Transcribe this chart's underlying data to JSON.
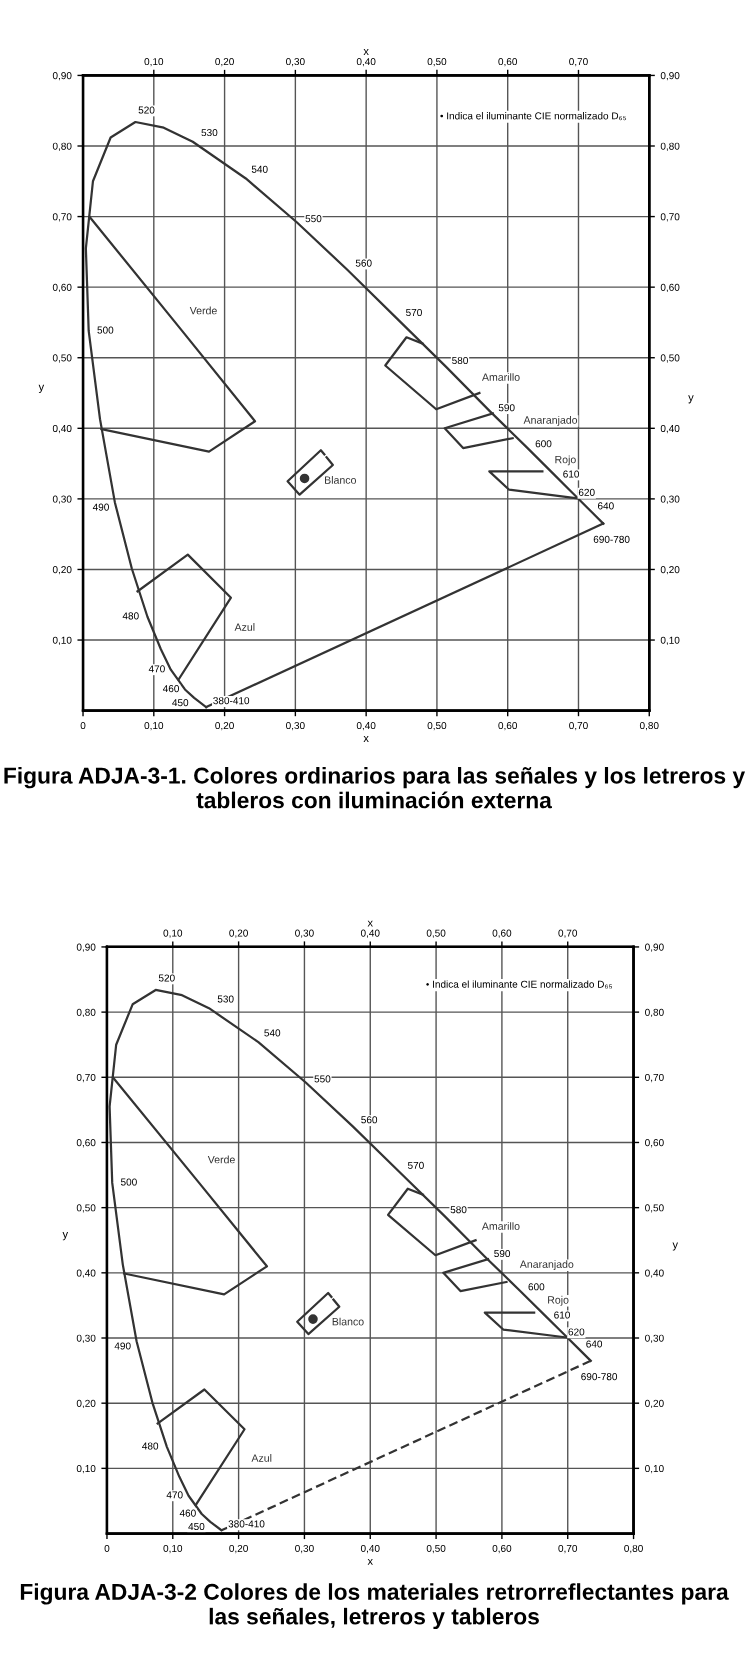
{
  "chart_data": [
    {
      "type": "line",
      "title": "Figura ADJA-3-1. Colores ordinarios para las señales y los letreros y tableros con iluminación externa",
      "xlabel": "x",
      "x2label": "x",
      "ylabel": "y",
      "y2label": "y",
      "xlim": [
        0,
        0.8
      ],
      "ylim": [
        0,
        0.9
      ],
      "x2lim": [
        0,
        0.8
      ],
      "y2lim": [
        0,
        0.9
      ],
      "xticks": [
        {
          "value": 0,
          "label": "0"
        },
        {
          "value": 0.1,
          "label": "0,10"
        },
        {
          "value": 0.2,
          "label": "0,20"
        },
        {
          "value": 0.3,
          "label": "0,30"
        },
        {
          "value": 0.4,
          "label": "0,40"
        },
        {
          "value": 0.5,
          "label": "0,50"
        },
        {
          "value": 0.6,
          "label": "0,60"
        },
        {
          "value": 0.7,
          "label": "0,70"
        },
        {
          "value": 0.8,
          "label": "0,80"
        }
      ],
      "x2ticks": [
        {
          "value": 0.1,
          "label": "0,10"
        },
        {
          "value": 0.2,
          "label": "0,20"
        },
        {
          "value": 0.3,
          "label": "0,30"
        },
        {
          "value": 0.4,
          "label": "0,40"
        },
        {
          "value": 0.5,
          "label": "0,50"
        },
        {
          "value": 0.6,
          "label": "0,60"
        },
        {
          "value": 0.7,
          "label": "0,70"
        }
      ],
      "yticks": [
        {
          "value": 0.1,
          "label": "0,10"
        },
        {
          "value": 0.2,
          "label": "0,20"
        },
        {
          "value": 0.3,
          "label": "0,30"
        },
        {
          "value": 0.4,
          "label": "0,40"
        },
        {
          "value": 0.5,
          "label": "0,50"
        },
        {
          "value": 0.6,
          "label": "0,60"
        },
        {
          "value": 0.7,
          "label": "0,70"
        },
        {
          "value": 0.8,
          "label": "0,80"
        },
        {
          "value": 0.9,
          "label": "0,90"
        }
      ],
      "y2ticks": [
        {
          "value": 0.1,
          "label": "0,10"
        },
        {
          "value": 0.2,
          "label": "0,20"
        },
        {
          "value": 0.3,
          "label": "0,30"
        },
        {
          "value": 0.4,
          "label": "0,40"
        },
        {
          "value": 0.5,
          "label": "0,50"
        },
        {
          "value": 0.6,
          "label": "0,60"
        },
        {
          "value": 0.7,
          "label": "0,70"
        },
        {
          "value": 0.8,
          "label": "0,80"
        },
        {
          "value": 0.9,
          "label": "0,90"
        }
      ],
      "grid": true,
      "legend": false,
      "series": [
        {
          "color": "#333333",
          "line_style": "solid",
          "x": [
            0.174,
            0.157,
            0.144,
            0.124,
            0.11,
            0.091,
            0.069,
            0.045,
            0.024,
            0.008,
            0.004,
            0.014,
            0.039,
            0.074,
            0.114,
            0.155,
            0.23,
            0.302,
            0.373,
            0.444,
            0.513,
            0.575,
            0.627,
            0.666,
            0.692,
            0.719,
            0.735
          ],
          "values": [
            0.005,
            0.018,
            0.03,
            0.058,
            0.087,
            0.133,
            0.201,
            0.295,
            0.413,
            0.538,
            0.655,
            0.75,
            0.812,
            0.834,
            0.826,
            0.806,
            0.754,
            0.692,
            0.625,
            0.555,
            0.487,
            0.424,
            0.373,
            0.334,
            0.308,
            0.281,
            0.265
          ]
        },
        {
          "color": "#333333",
          "line_style": "solid",
          "x": [
            0.735,
            0.174
          ],
          "values": [
            0.265,
            0.005
          ]
        },
        {
          "name": "Verde",
          "color": "#333333",
          "line_style": "solid",
          "x": [
            0.026,
            0.178,
            0.243,
            0.14,
            0.009
          ],
          "values": [
            0.399,
            0.367,
            0.41,
            0.538,
            0.7
          ]
        },
        {
          "name": "Amarillo",
          "color": "#333333",
          "line_style": "solid",
          "x": [
            0.48,
            0.457,
            0.427,
            0.499,
            0.56
          ],
          "values": [
            0.52,
            0.529,
            0.489,
            0.427,
            0.45
          ]
        },
        {
          "name": "Anaranjado",
          "color": "#333333",
          "line_style": "solid",
          "x": [
            0.579,
            0.511,
            0.537,
            0.607
          ],
          "values": [
            0.421,
            0.4,
            0.372,
            0.386
          ]
        },
        {
          "name": "Rojo",
          "color": "#333333",
          "line_style": "solid",
          "x": [
            0.649,
            0.574,
            0.602,
            0.697
          ],
          "values": [
            0.339,
            0.339,
            0.313,
            0.301
          ]
        },
        {
          "name": "Blanco",
          "color": "#333333",
          "line_style": "solid",
          "x": [
            0.344,
            0.353,
            0.306,
            0.289,
            0.336,
            0.341
          ],
          "values": [
            0.359,
            0.348,
            0.306,
            0.325,
            0.369,
            0.363
          ]
        },
        {
          "name": "Azul",
          "color": "#333333",
          "line_style": "solid",
          "x": [
            0.135,
            0.209,
            0.148,
            0.077
          ],
          "values": [
            0.044,
            0.16,
            0.221,
            0.169
          ]
        },
        {
          "type": "scatter",
          "color": "#333333",
          "marker": "circle",
          "x": [
            0.313
          ],
          "values": [
            0.329
          ]
        }
      ],
      "annotations": [
        "• Indica el iluminante CIE normalizado D₆₅",
        {
          "text": "520",
          "x": 0.074,
          "y": 0.834
        },
        {
          "text": "530",
          "x": 0.155,
          "y": 0.806
        },
        {
          "text": "540",
          "x": 0.23,
          "y": 0.754
        },
        {
          "text": "550",
          "x": 0.302,
          "y": 0.692
        },
        {
          "text": "560",
          "x": 0.373,
          "y": 0.625
        },
        {
          "text": "570",
          "x": 0.444,
          "y": 0.555
        },
        {
          "text": "580",
          "x": 0.513,
          "y": 0.487
        },
        {
          "text": "590",
          "x": 0.575,
          "y": 0.424
        },
        {
          "text": "600",
          "x": 0.627,
          "y": 0.373
        },
        {
          "text": "610",
          "x": 0.666,
          "y": 0.334
        },
        {
          "text": "620",
          "x": 0.692,
          "y": 0.308
        },
        {
          "text": "640",
          "x": 0.719,
          "y": 0.281
        },
        {
          "text": "690-780",
          "x": 0.735,
          "y": 0.265
        },
        {
          "text": "500",
          "x": 0.008,
          "y": 0.538
        },
        {
          "text": "490",
          "x": 0.045,
          "y": 0.295
        },
        {
          "text": "480",
          "x": 0.091,
          "y": 0.133
        },
        {
          "text": "470",
          "x": 0.124,
          "y": 0.058
        },
        {
          "text": "460",
          "x": 0.144,
          "y": 0.03
        },
        {
          "text": "450",
          "x": 0.157,
          "y": 0.018
        },
        {
          "text": "380-410",
          "x": 0.174,
          "y": 0.005
        }
      ]
    },
    {
      "type": "line",
      "title": "Figura ADJA-3-2 Colores de los materiales retrorreflectantes para las señales, letreros y tableros",
      "xlabel": "x",
      "x2label": "x",
      "ylabel": "y",
      "y2label": "y",
      "xlim": [
        0,
        0.8
      ],
      "ylim": [
        0,
        0.9
      ],
      "x2lim": [
        0,
        0.8
      ],
      "y2lim": [
        0,
        0.9
      ],
      "xticks": [
        {
          "value": 0,
          "label": "0"
        },
        {
          "value": 0.1,
          "label": "0,10"
        },
        {
          "value": 0.2,
          "label": "0,20"
        },
        {
          "value": 0.3,
          "label": "0,30"
        },
        {
          "value": 0.4,
          "label": "0,40"
        },
        {
          "value": 0.5,
          "label": "0,50"
        },
        {
          "value": 0.6,
          "label": "0,60"
        },
        {
          "value": 0.7,
          "label": "0,70"
        },
        {
          "value": 0.8,
          "label": "0,80"
        }
      ],
      "x2ticks": [
        {
          "value": 0.1,
          "label": "0,10"
        },
        {
          "value": 0.2,
          "label": "0,20"
        },
        {
          "value": 0.3,
          "label": "0,30"
        },
        {
          "value": 0.4,
          "label": "0,40"
        },
        {
          "value": 0.5,
          "label": "0,50"
        },
        {
          "value": 0.6,
          "label": "0,60"
        },
        {
          "value": 0.7,
          "label": "0,70"
        }
      ],
      "yticks": [
        {
          "value": 0.1,
          "label": "0,10"
        },
        {
          "value": 0.2,
          "label": "0,20"
        },
        {
          "value": 0.3,
          "label": "0,30"
        },
        {
          "value": 0.4,
          "label": "0,40"
        },
        {
          "value": 0.5,
          "label": "0,50"
        },
        {
          "value": 0.6,
          "label": "0,60"
        },
        {
          "value": 0.7,
          "label": "0,70"
        },
        {
          "value": 0.8,
          "label": "0,80"
        },
        {
          "value": 0.9,
          "label": "0,90"
        }
      ],
      "y2ticks": [
        {
          "value": 0.1,
          "label": "0,10"
        },
        {
          "value": 0.2,
          "label": "0,20"
        },
        {
          "value": 0.3,
          "label": "0,30"
        },
        {
          "value": 0.4,
          "label": "0,40"
        },
        {
          "value": 0.5,
          "label": "0,50"
        },
        {
          "value": 0.6,
          "label": "0,60"
        },
        {
          "value": 0.7,
          "label": "0,70"
        },
        {
          "value": 0.8,
          "label": "0,80"
        },
        {
          "value": 0.9,
          "label": "0,90"
        }
      ],
      "grid": true,
      "legend": false,
      "series": [
        {
          "color": "#333333",
          "line_style": "solid",
          "x": [
            0.174,
            0.157,
            0.144,
            0.124,
            0.11,
            0.091,
            0.069,
            0.045,
            0.024,
            0.008,
            0.004,
            0.014,
            0.039,
            0.074,
            0.114,
            0.155,
            0.23,
            0.302,
            0.373,
            0.444,
            0.513,
            0.575,
            0.627,
            0.666,
            0.692,
            0.719,
            0.735
          ],
          "values": [
            0.005,
            0.018,
            0.03,
            0.058,
            0.087,
            0.133,
            0.201,
            0.295,
            0.413,
            0.538,
            0.655,
            0.75,
            0.812,
            0.834,
            0.826,
            0.806,
            0.754,
            0.692,
            0.625,
            0.555,
            0.487,
            0.424,
            0.373,
            0.334,
            0.308,
            0.281,
            0.265
          ]
        },
        {
          "color": "#333333",
          "line_style": "dashed",
          "x": [
            0.735,
            0.174
          ],
          "values": [
            0.265,
            0.005
          ]
        },
        {
          "name": "Verde",
          "color": "#333333",
          "line_style": "solid",
          "x": [
            0.026,
            0.178,
            0.243,
            0.14,
            0.009
          ],
          "values": [
            0.399,
            0.367,
            0.41,
            0.538,
            0.7
          ]
        },
        {
          "name": "Amarillo",
          "color": "#333333",
          "line_style": "solid",
          "x": [
            0.48,
            0.457,
            0.427,
            0.499,
            0.56
          ],
          "values": [
            0.52,
            0.529,
            0.489,
            0.427,
            0.45
          ]
        },
        {
          "name": "Anaranjado",
          "color": "#333333",
          "line_style": "solid",
          "x": [
            0.579,
            0.511,
            0.537,
            0.607
          ],
          "values": [
            0.421,
            0.4,
            0.372,
            0.386
          ]
        },
        {
          "name": "Rojo",
          "color": "#333333",
          "line_style": "solid",
          "x": [
            0.649,
            0.574,
            0.602,
            0.697
          ],
          "values": [
            0.339,
            0.339,
            0.313,
            0.301
          ]
        },
        {
          "name": "Blanco",
          "color": "#333333",
          "line_style": "solid",
          "x": [
            0.344,
            0.353,
            0.306,
            0.289,
            0.336,
            0.341
          ],
          "values": [
            0.359,
            0.348,
            0.306,
            0.325,
            0.369,
            0.363
          ]
        },
        {
          "name": "Azul",
          "color": "#333333",
          "line_style": "solid",
          "x": [
            0.135,
            0.209,
            0.148,
            0.077
          ],
          "values": [
            0.044,
            0.16,
            0.221,
            0.169
          ]
        },
        {
          "type": "scatter",
          "color": "#333333",
          "marker": "circle",
          "x": [
            0.313
          ],
          "values": [
            0.329
          ]
        }
      ],
      "annotations": [
        "• Indica el iluminante CIE normalizado D₆₅",
        {
          "text": "520",
          "x": 0.074,
          "y": 0.834
        },
        {
          "text": "530",
          "x": 0.155,
          "y": 0.806
        },
        {
          "text": "540",
          "x": 0.23,
          "y": 0.754
        },
        {
          "text": "550",
          "x": 0.302,
          "y": 0.692
        },
        {
          "text": "560",
          "x": 0.373,
          "y": 0.625
        },
        {
          "text": "570",
          "x": 0.444,
          "y": 0.555
        },
        {
          "text": "580",
          "x": 0.513,
          "y": 0.487
        },
        {
          "text": "590",
          "x": 0.575,
          "y": 0.424
        },
        {
          "text": "600",
          "x": 0.627,
          "y": 0.373
        },
        {
          "text": "610",
          "x": 0.666,
          "y": 0.334
        },
        {
          "text": "620",
          "x": 0.692,
          "y": 0.308
        },
        {
          "text": "640",
          "x": 0.719,
          "y": 0.281
        },
        {
          "text": "690-780",
          "x": 0.735,
          "y": 0.265
        },
        {
          "text": "500",
          "x": 0.008,
          "y": 0.538
        },
        {
          "text": "490",
          "x": 0.045,
          "y": 0.295
        },
        {
          "text": "480",
          "x": 0.091,
          "y": 0.133
        },
        {
          "text": "470",
          "x": 0.124,
          "y": 0.058
        },
        {
          "text": "460",
          "x": 0.144,
          "y": 0.03
        },
        {
          "text": "450",
          "x": 0.157,
          "y": 0.018
        },
        {
          "text": "380-410",
          "x": 0.174,
          "y": 0.005
        }
      ]
    }
  ]
}
